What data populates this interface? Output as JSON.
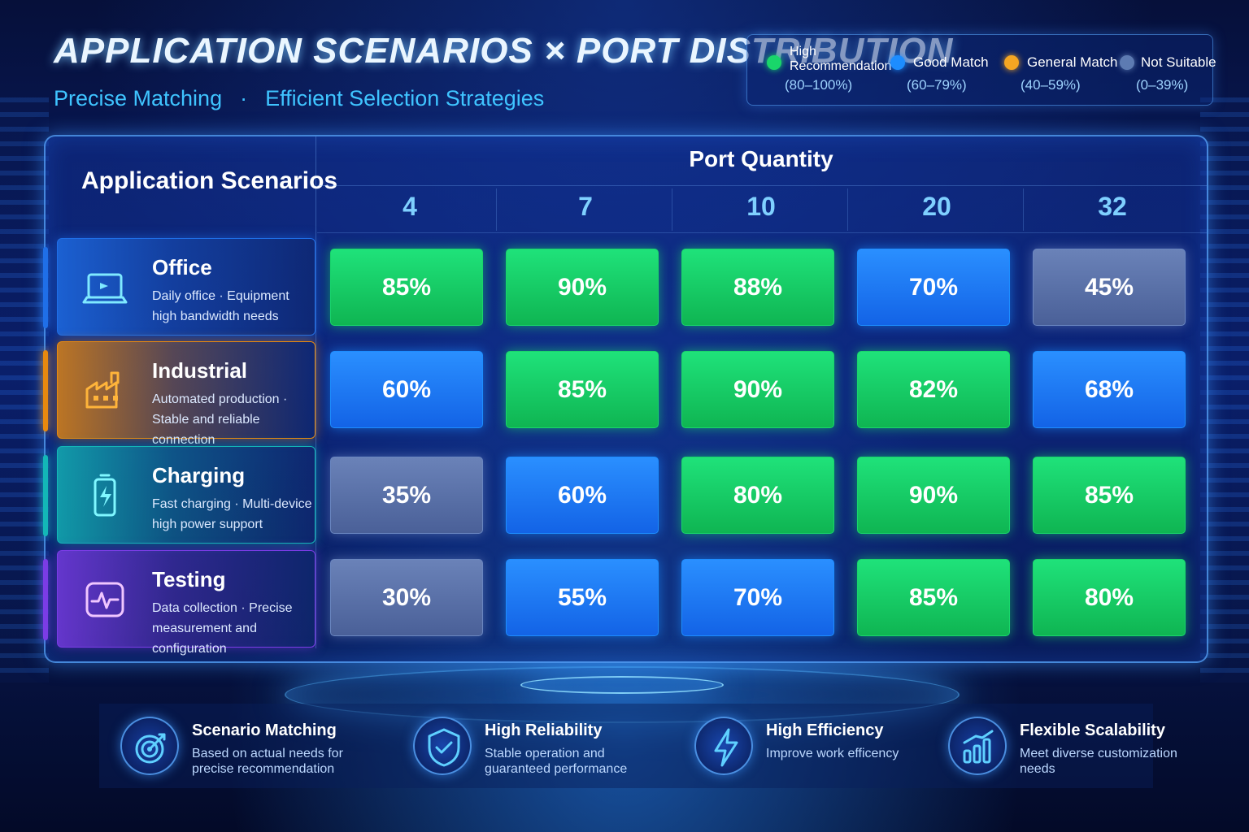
{
  "header": {
    "title": "APPLICATION SCENARIOS × PORT DISTRIBUTION",
    "subtitle_left": "Precise Matching",
    "subtitle_separator": "·",
    "subtitle_right": "Efficient Selection Strategies"
  },
  "legend": [
    {
      "label": "High Recommendation",
      "range": "(80–100%)",
      "color": "#19d66a"
    },
    {
      "label": "Good Match",
      "range": "(60–79%)",
      "color": "#1d8dff"
    },
    {
      "label": "General Match",
      "range": "(40–59%)",
      "color": "#f5a623"
    },
    {
      "label": "Not Suitable",
      "range": "(0–39%)",
      "color": "#5d7bb2"
    }
  ],
  "colors": {
    "high": "#11c65a",
    "good": "#1c7bff",
    "low": "#4f6aa3",
    "accent": "#3fc4ff"
  },
  "chart_data": {
    "type": "heatmap",
    "row_header": "Application Scenarios",
    "col_header": "Port Quantity",
    "columns": [
      "4",
      "7",
      "10",
      "20",
      "32"
    ],
    "rows": [
      {
        "name": "Office",
        "desc": "Daily office · Equipment high bandwidth needs",
        "icon": "laptop-icon",
        "color": "#1f6fe8",
        "values": [
          85,
          90,
          88,
          70,
          45
        ],
        "labels": [
          "85%",
          "90%",
          "88%",
          "70%",
          "45%"
        ]
      },
      {
        "name": "Industrial",
        "desc": "Automated production · Stable and reliable connection",
        "icon": "factory-icon",
        "color": "#e8890f",
        "values": [
          60,
          85,
          90,
          82,
          68
        ],
        "labels": [
          "60%",
          "85%",
          "90%",
          "82%",
          "68%"
        ]
      },
      {
        "name": "Charging",
        "desc": "Fast charging · Multi-device high power support",
        "icon": "battery-icon",
        "color": "#13b7b7",
        "values": [
          35,
          60,
          80,
          90,
          85
        ],
        "labels": [
          "35%",
          "60%",
          "80%",
          "90%",
          "85%"
        ]
      },
      {
        "name": "Testing",
        "desc": "Data collection · Precise measurement and configuration",
        "icon": "monitor-pulse-icon",
        "color": "#7b3ce6",
        "values": [
          30,
          55,
          70,
          85,
          80
        ],
        "labels": [
          "30%",
          "55%",
          "70%",
          "85%",
          "80%"
        ]
      }
    ]
  },
  "features": [
    {
      "title": "Scenario Matching",
      "desc": "Based on actual needs for precise recommendation",
      "icon": "target-icon"
    },
    {
      "title": "High Reliability",
      "desc": "Stable operation and guaranteed performance",
      "icon": "shield-check-icon"
    },
    {
      "title": "High Efficiency",
      "desc": "Improve work efficency",
      "icon": "lightning-icon"
    },
    {
      "title": "Flexible Scalability",
      "desc": "Meet diverse customization needs",
      "icon": "bar-growth-icon"
    }
  ]
}
